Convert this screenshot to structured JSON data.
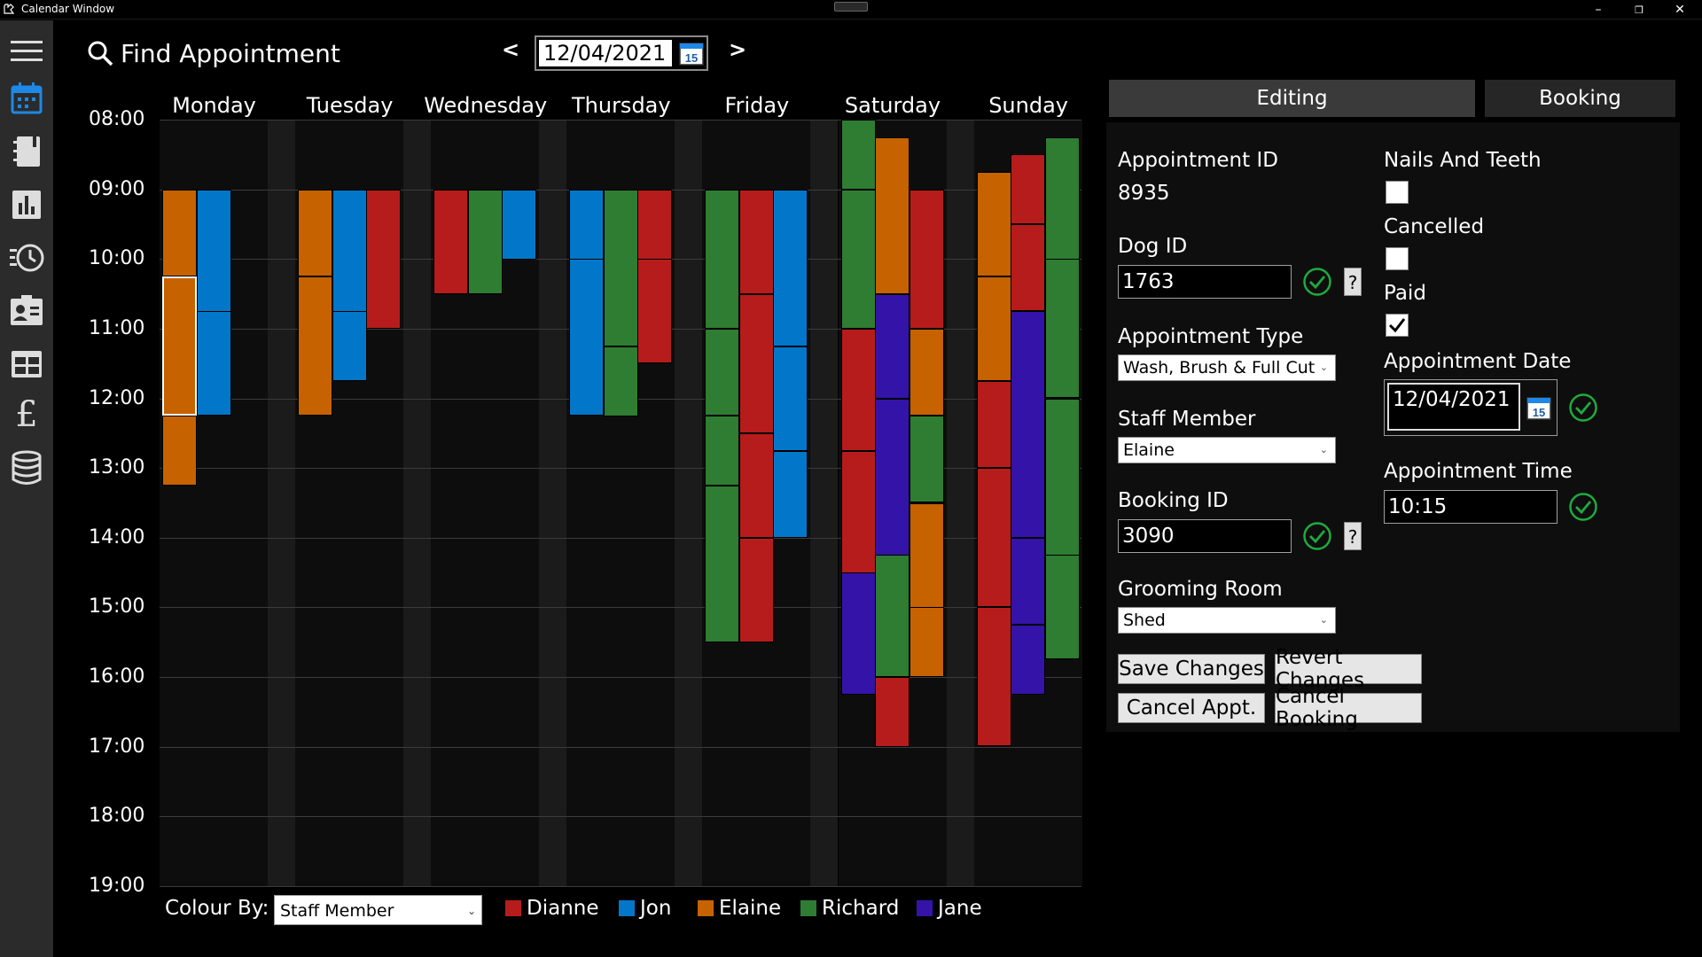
{
  "window": {
    "title": "Calendar Window",
    "minimize": "–",
    "restore": "❐",
    "close": "✕"
  },
  "colors": {
    "Dianne": "#b71c1c",
    "Jon": "#0277c9",
    "Elaine": "#c66200",
    "Richard": "#2e7d32",
    "Jane": "#3414a8",
    "sidebar": "#2b2b2b",
    "accent": "#1e88e5"
  },
  "sidebar": {
    "items": [
      {
        "icon": "hamburger-menu-icon"
      },
      {
        "icon": "calendar-icon",
        "active": true
      },
      {
        "icon": "notebook-icon"
      },
      {
        "icon": "bar-chart-icon"
      },
      {
        "icon": "history-icon"
      },
      {
        "icon": "contact-card-icon"
      },
      {
        "icon": "table-grid-icon"
      },
      {
        "icon": "pound-icon",
        "glyph": "£"
      },
      {
        "icon": "database-icon"
      }
    ]
  },
  "header": {
    "find_label": "Find Appointment",
    "prev": "<",
    "next": ">",
    "date": "12/04/2021",
    "cal_day": "15"
  },
  "calendar": {
    "days": [
      "Monday",
      "Tuesday",
      "Wednesday",
      "Thursday",
      "Friday",
      "Saturday",
      "Sunday"
    ],
    "times": [
      "08:00",
      "09:00",
      "10:00",
      "11:00",
      "12:00",
      "13:00",
      "14:00",
      "15:00",
      "16:00",
      "17:00",
      "18:00",
      "19:00"
    ],
    "start_hour": 8,
    "end_hour": 19,
    "appointments": [
      {
        "day": 0,
        "lane": 0,
        "start": 9.0,
        "end": 10.25,
        "staff": "Elaine"
      },
      {
        "day": 0,
        "lane": 0,
        "start": 10.25,
        "end": 12.25,
        "staff": "Elaine",
        "selected": true
      },
      {
        "day": 0,
        "lane": 0,
        "start": 12.25,
        "end": 13.25,
        "staff": "Elaine"
      },
      {
        "day": 0,
        "lane": 1,
        "start": 9.0,
        "end": 10.75,
        "staff": "Jon"
      },
      {
        "day": 0,
        "lane": 1,
        "start": 10.75,
        "end": 12.25,
        "staff": "Jon"
      },
      {
        "day": 1,
        "lane": 0,
        "start": 9.0,
        "end": 10.25,
        "staff": "Elaine"
      },
      {
        "day": 1,
        "lane": 0,
        "start": 10.25,
        "end": 12.25,
        "staff": "Elaine"
      },
      {
        "day": 1,
        "lane": 1,
        "start": 9.0,
        "end": 10.75,
        "staff": "Jon"
      },
      {
        "day": 1,
        "lane": 1,
        "start": 10.75,
        "end": 11.75,
        "staff": "Jon"
      },
      {
        "day": 1,
        "lane": 2,
        "start": 9.0,
        "end": 11.0,
        "staff": "Dianne"
      },
      {
        "day": 2,
        "lane": 0,
        "start": 9.0,
        "end": 10.5,
        "staff": "Dianne"
      },
      {
        "day": 2,
        "lane": 1,
        "start": 9.0,
        "end": 10.5,
        "staff": "Richard"
      },
      {
        "day": 2,
        "lane": 2,
        "start": 9.0,
        "end": 10.0,
        "staff": "Jon"
      },
      {
        "day": 3,
        "lane": 0,
        "start": 9.0,
        "end": 10.0,
        "staff": "Jon"
      },
      {
        "day": 3,
        "lane": 0,
        "start": 10.0,
        "end": 12.25,
        "staff": "Jon"
      },
      {
        "day": 3,
        "lane": 1,
        "start": 9.0,
        "end": 11.25,
        "staff": "Richard"
      },
      {
        "day": 3,
        "lane": 1,
        "start": 11.25,
        "end": 12.25,
        "staff": "Richard"
      },
      {
        "day": 3,
        "lane": 2,
        "start": 9.0,
        "end": 10.0,
        "staff": "Dianne"
      },
      {
        "day": 3,
        "lane": 2,
        "start": 10.0,
        "end": 11.5,
        "staff": "Dianne"
      },
      {
        "day": 4,
        "lane": 0,
        "start": 9.0,
        "end": 11.0,
        "staff": "Richard"
      },
      {
        "day": 4,
        "lane": 0,
        "start": 11.0,
        "end": 12.25,
        "staff": "Richard"
      },
      {
        "day": 4,
        "lane": 0,
        "start": 12.25,
        "end": 13.25,
        "staff": "Richard"
      },
      {
        "day": 4,
        "lane": 0,
        "start": 13.25,
        "end": 15.5,
        "staff": "Richard"
      },
      {
        "day": 4,
        "lane": 1,
        "start": 9.0,
        "end": 10.5,
        "staff": "Dianne"
      },
      {
        "day": 4,
        "lane": 1,
        "start": 10.5,
        "end": 12.5,
        "staff": "Dianne"
      },
      {
        "day": 4,
        "lane": 1,
        "start": 12.5,
        "end": 14.0,
        "staff": "Dianne"
      },
      {
        "day": 4,
        "lane": 1,
        "start": 14.0,
        "end": 15.5,
        "staff": "Dianne"
      },
      {
        "day": 4,
        "lane": 2,
        "start": 9.0,
        "end": 11.25,
        "staff": "Jon"
      },
      {
        "day": 4,
        "lane": 2,
        "start": 11.25,
        "end": 12.75,
        "staff": "Jon"
      },
      {
        "day": 4,
        "lane": 2,
        "start": 12.75,
        "end": 14.0,
        "staff": "Jon"
      },
      {
        "day": 5,
        "lane": 0,
        "start": 8.0,
        "end": 9.0,
        "staff": "Richard"
      },
      {
        "day": 5,
        "lane": 0,
        "start": 9.0,
        "end": 11.0,
        "staff": "Richard"
      },
      {
        "day": 5,
        "lane": 0,
        "start": 11.0,
        "end": 12.75,
        "staff": "Dianne"
      },
      {
        "day": 5,
        "lane": 0,
        "start": 12.75,
        "end": 14.5,
        "staff": "Dianne"
      },
      {
        "day": 5,
        "lane": 0,
        "start": 14.5,
        "end": 16.25,
        "staff": "Jane"
      },
      {
        "day": 5,
        "lane": 1,
        "start": 8.25,
        "end": 10.5,
        "staff": "Elaine"
      },
      {
        "day": 5,
        "lane": 1,
        "start": 10.5,
        "end": 12.0,
        "staff": "Jane"
      },
      {
        "day": 5,
        "lane": 1,
        "start": 12.0,
        "end": 14.25,
        "staff": "Jane"
      },
      {
        "day": 5,
        "lane": 1,
        "start": 14.25,
        "end": 16.0,
        "staff": "Richard"
      },
      {
        "day": 5,
        "lane": 1,
        "start": 16.0,
        "end": 17.0,
        "staff": "Dianne"
      },
      {
        "day": 5,
        "lane": 2,
        "start": 9.0,
        "end": 11.0,
        "staff": "Dianne"
      },
      {
        "day": 5,
        "lane": 2,
        "start": 11.0,
        "end": 12.25,
        "staff": "Elaine"
      },
      {
        "day": 5,
        "lane": 2,
        "start": 12.25,
        "end": 13.5,
        "staff": "Richard"
      },
      {
        "day": 5,
        "lane": 2,
        "start": 13.5,
        "end": 15.0,
        "staff": "Elaine"
      },
      {
        "day": 5,
        "lane": 2,
        "start": 15.0,
        "end": 16.0,
        "staff": "Elaine"
      },
      {
        "day": 6,
        "lane": 0,
        "start": 8.75,
        "end": 10.25,
        "staff": "Elaine"
      },
      {
        "day": 6,
        "lane": 0,
        "start": 10.25,
        "end": 11.75,
        "staff": "Elaine"
      },
      {
        "day": 6,
        "lane": 0,
        "start": 11.75,
        "end": 13.0,
        "staff": "Dianne"
      },
      {
        "day": 6,
        "lane": 0,
        "start": 13.0,
        "end": 15.0,
        "staff": "Dianne"
      },
      {
        "day": 6,
        "lane": 0,
        "start": 15.0,
        "end": 17.0,
        "staff": "Dianne"
      },
      {
        "day": 6,
        "lane": 1,
        "start": 8.5,
        "end": 9.5,
        "staff": "Dianne"
      },
      {
        "day": 6,
        "lane": 1,
        "start": 9.5,
        "end": 10.75,
        "staff": "Dianne"
      },
      {
        "day": 6,
        "lane": 1,
        "start": 10.75,
        "end": 14.0,
        "staff": "Jane"
      },
      {
        "day": 6,
        "lane": 1,
        "start": 14.0,
        "end": 15.25,
        "staff": "Jane"
      },
      {
        "day": 6,
        "lane": 1,
        "start": 15.25,
        "end": 16.25,
        "staff": "Jane"
      },
      {
        "day": 6,
        "lane": 2,
        "start": 8.25,
        "end": 10.0,
        "staff": "Richard"
      },
      {
        "day": 6,
        "lane": 2,
        "start": 10.0,
        "end": 12.0,
        "staff": "Richard"
      },
      {
        "day": 6,
        "lane": 2,
        "start": 12.0,
        "end": 14.25,
        "staff": "Richard"
      },
      {
        "day": 6,
        "lane": 2,
        "start": 14.25,
        "end": 15.75,
        "staff": "Richard"
      }
    ]
  },
  "footer": {
    "colour_by_label": "Colour By:",
    "colour_by_value": "Staff Member",
    "legend": [
      "Dianne",
      "Jon",
      "Elaine",
      "Richard",
      "Jane"
    ]
  },
  "tabs": {
    "editing": "Editing",
    "booking": "Booking"
  },
  "form": {
    "appointment_id_label": "Appointment ID",
    "appointment_id": "8935",
    "dog_id_label": "Dog ID",
    "dog_id": "1763",
    "appointment_type_label": "Appointment Type",
    "appointment_type": "Wash, Brush & Full Cut",
    "staff_member_label": "Staff Member",
    "staff_member": "Elaine",
    "booking_id_label": "Booking ID",
    "booking_id": "3090",
    "grooming_room_label": "Grooming Room",
    "grooming_room": "Shed",
    "nails_label": "Nails And Teeth",
    "nails_checked": false,
    "cancelled_label": "Cancelled",
    "cancelled_checked": false,
    "paid_label": "Paid",
    "paid_checked": true,
    "appointment_date_label": "Appointment Date",
    "appointment_date": "12/04/2021",
    "appointment_time_label": "Appointment Time",
    "appointment_time": "10:15",
    "help": "?",
    "cal_day": "15"
  },
  "buttons": {
    "save": "Save Changes",
    "revert": "Revert Changes",
    "cancel_appt": "Cancel Appt.",
    "cancel_booking": "Cancel Booking"
  }
}
